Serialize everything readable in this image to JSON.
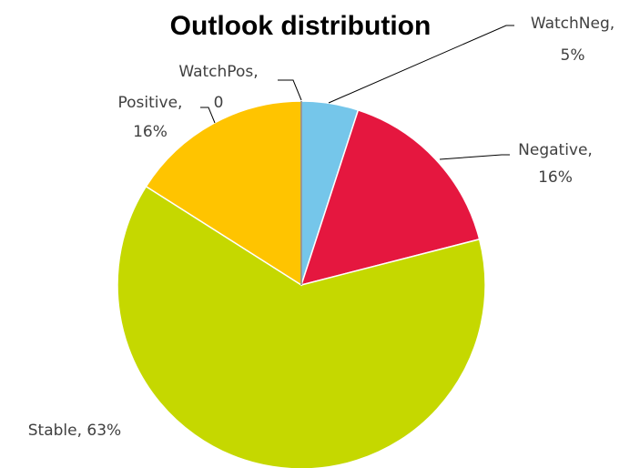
{
  "chart_data": {
    "type": "pie",
    "title": "Outlook distribution",
    "start_angle_deg": 0,
    "direction": "clockwise",
    "slices": [
      {
        "name": "WatchNeg",
        "value": 5,
        "label_line1": "WatchNeg,",
        "label_line2": "5%",
        "color": "#75C6EA"
      },
      {
        "name": "Negative",
        "value": 16,
        "label_line1": "Negative,",
        "label_line2": "16%",
        "color": "#E5173F"
      },
      {
        "name": "Stable",
        "value": 63,
        "label_line1": "Stable, 63%",
        "label_line2": "",
        "color": "#C5D800"
      },
      {
        "name": "Positive",
        "value": 16,
        "label_line1": "Positive,",
        "label_line2": "16%",
        "color": "#FFC400"
      },
      {
        "name": "WatchPos",
        "value": 0,
        "label_line1": "WatchPos,",
        "label_line2": "0",
        "color": "#7F7F7F"
      }
    ]
  }
}
